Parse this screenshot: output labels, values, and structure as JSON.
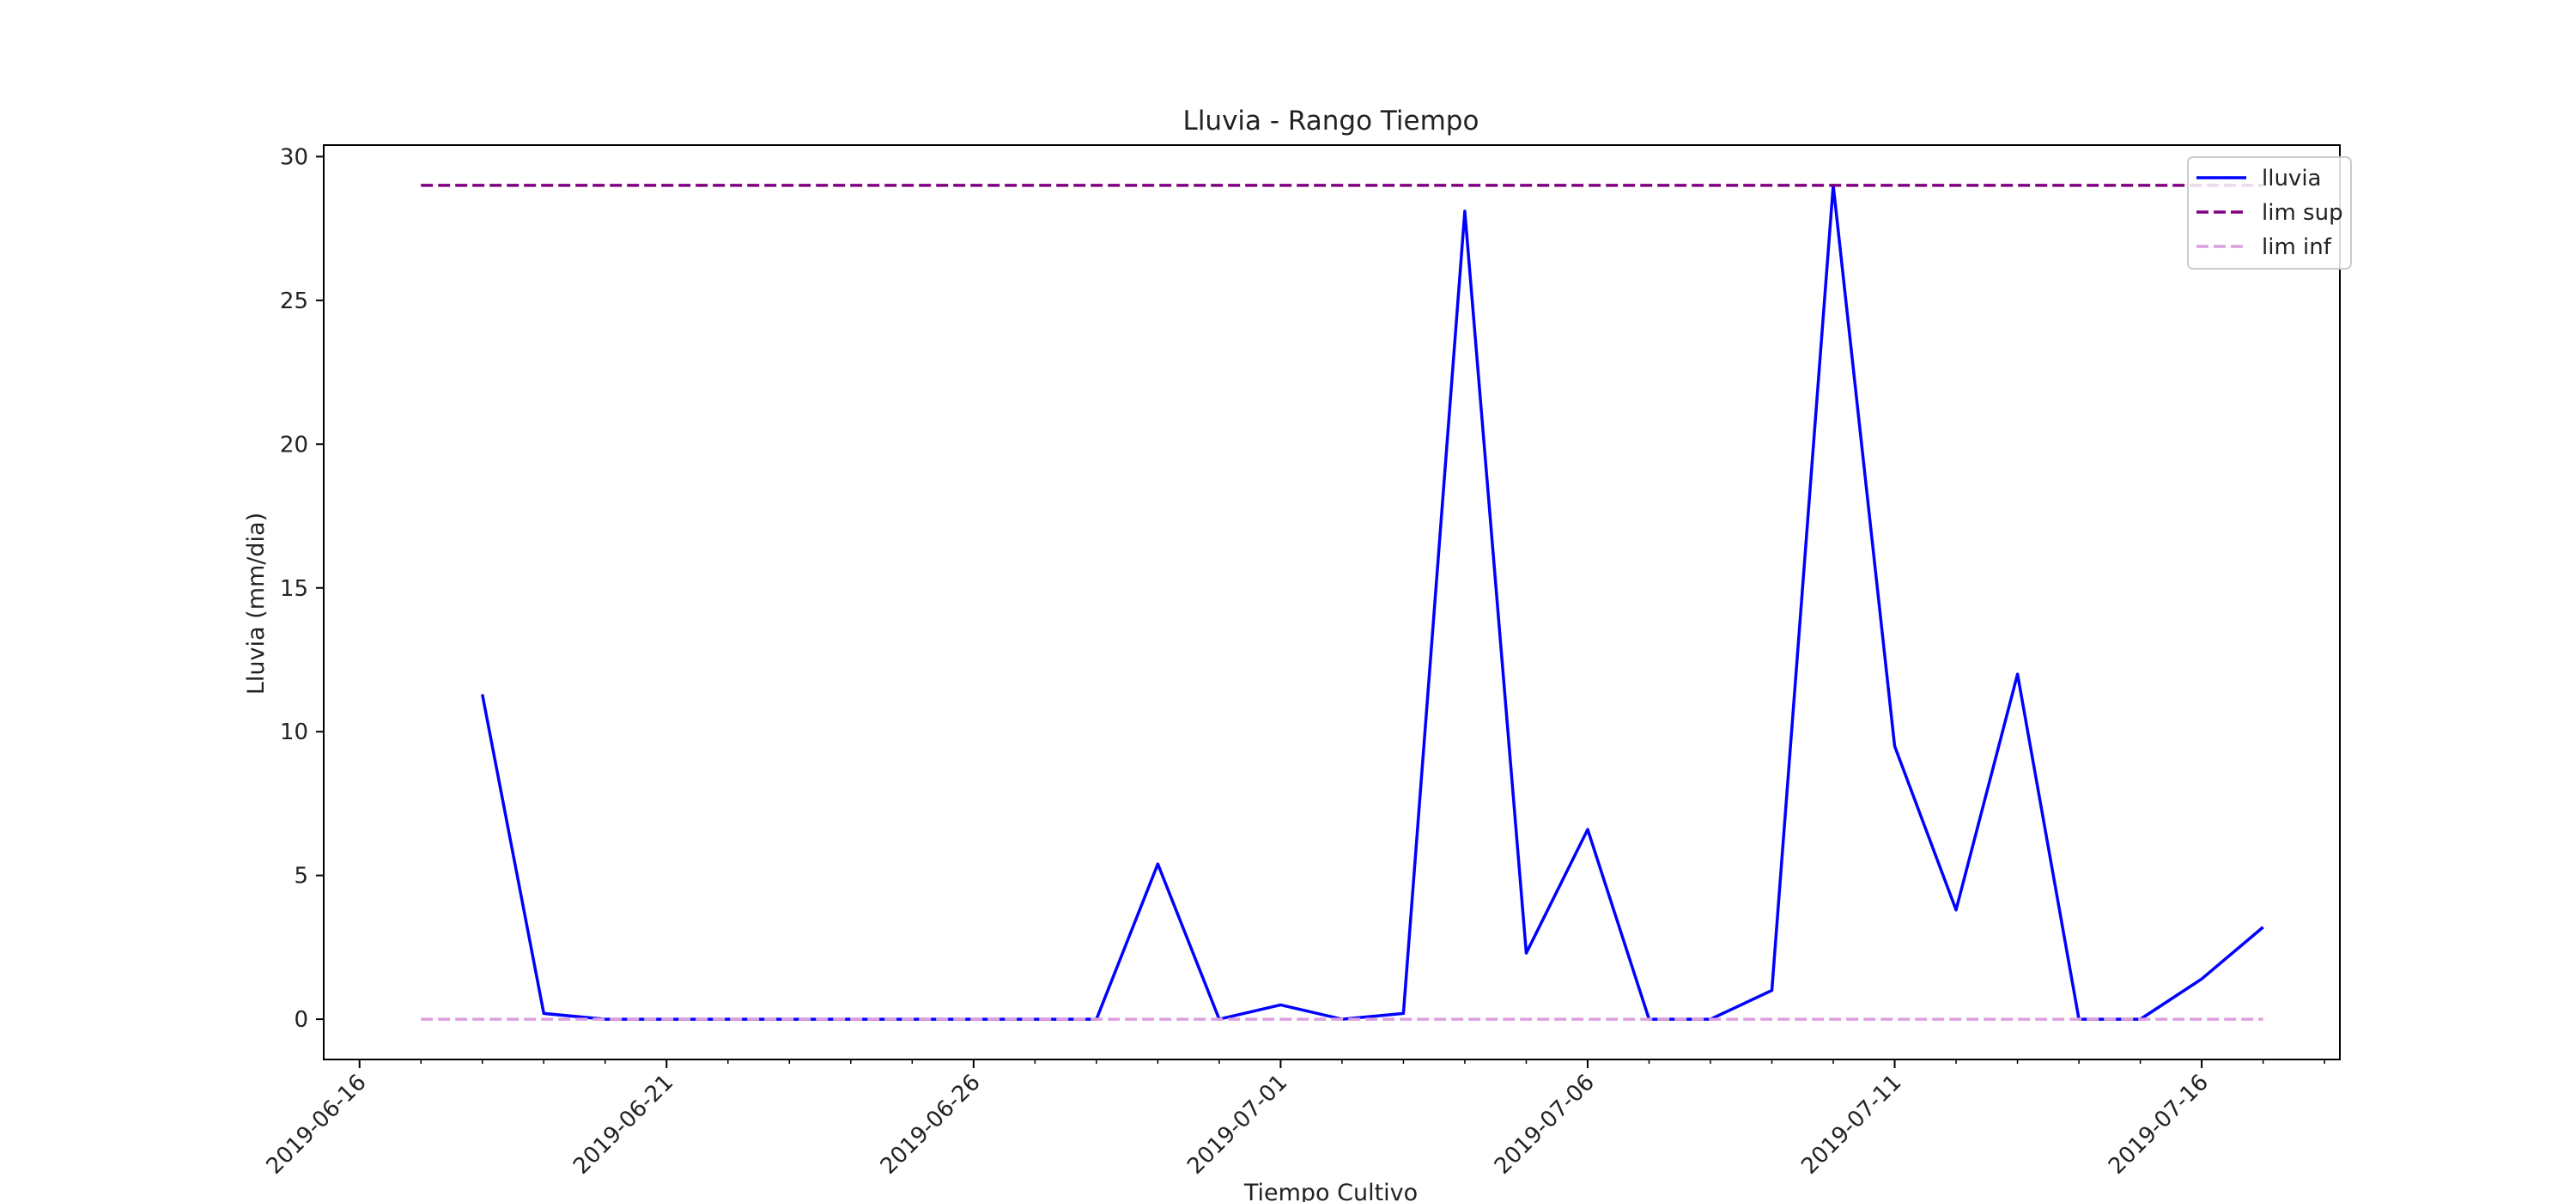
{
  "chart_data": {
    "type": "line",
    "title": "Lluvia - Rango Tiempo",
    "xlabel": "Tiempo Cultivo",
    "ylabel": "Lluvia (mm/dia)",
    "xlim": [
      "2019-06-15T10:00",
      "2019-07-18T06:00"
    ],
    "ylim": [
      -1.4,
      30.4
    ],
    "yticks": [
      0,
      5,
      10,
      15,
      20,
      25,
      30
    ],
    "xticks": [
      "2019-06-16",
      "2019-06-21",
      "2019-06-26",
      "2019-07-01",
      "2019-07-06",
      "2019-07-11",
      "2019-07-16"
    ],
    "minor_xtick_interval_days": 1,
    "grid": false,
    "legend_position": "top-right",
    "series": [
      {
        "name": "lluvia",
        "color": "#0000ff",
        "style": "solid",
        "x": [
          "2019-06-18",
          "2019-06-19",
          "2019-06-20",
          "2019-06-21",
          "2019-06-22",
          "2019-06-23",
          "2019-06-24",
          "2019-06-25",
          "2019-06-26",
          "2019-06-27",
          "2019-06-28",
          "2019-06-29",
          "2019-06-30",
          "2019-07-01",
          "2019-07-02",
          "2019-07-03",
          "2019-07-04",
          "2019-07-05",
          "2019-07-06",
          "2019-07-07",
          "2019-07-08",
          "2019-07-09",
          "2019-07-10",
          "2019-07-11",
          "2019-07-12",
          "2019-07-13",
          "2019-07-14",
          "2019-07-15",
          "2019-07-16",
          "2019-07-17"
        ],
        "values": [
          11.3,
          0.2,
          0,
          0,
          0,
          0,
          0,
          0,
          0,
          0,
          0,
          5.4,
          0,
          0.5,
          0,
          0.2,
          28.1,
          2.3,
          6.6,
          0,
          0,
          1.0,
          29.0,
          9.5,
          3.8,
          12.0,
          0,
          0,
          1.4,
          3.2
        ]
      },
      {
        "name": "lim sup",
        "color": "#800080",
        "style": "dashed",
        "x": [
          "2019-06-17",
          "2019-07-17"
        ],
        "values": [
          29,
          29
        ]
      },
      {
        "name": "lim inf",
        "color": "#dda0dd",
        "style": "dashed",
        "x": [
          "2019-06-17",
          "2019-07-17"
        ],
        "values": [
          0,
          0
        ]
      }
    ]
  }
}
